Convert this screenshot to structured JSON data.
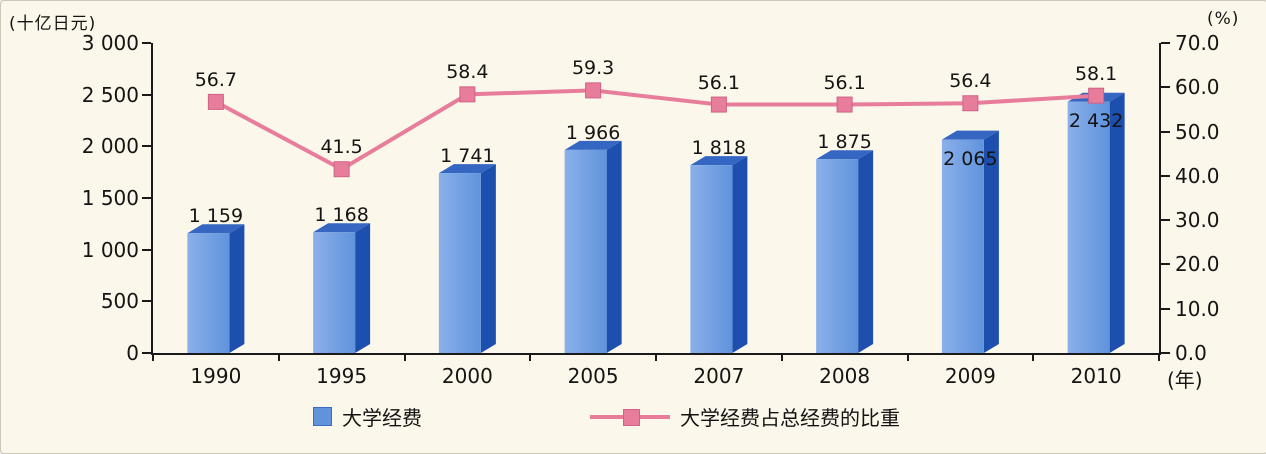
{
  "legend": [
    {
      "label": "大学经费",
      "type": "bar"
    },
    {
      "label": "大学经费占总经费的比重",
      "type": "line"
    }
  ],
  "colors": {
    "background": "#fbf7ea",
    "axis": "#1a1a1a",
    "text": "#141414",
    "bar_front": "#6093dc",
    "bar_front_light": "#8ab0ea",
    "bar_side": "#1d4fae",
    "bar_top": "#3566c2",
    "line": "#e87c9b",
    "marker_border": "#cf6287"
  },
  "chart_data": {
    "type": "bar",
    "subtype": "bar+line combo, 3D-style bars, secondary percent axis",
    "categories": [
      "1990",
      "1995",
      "2000",
      "2005",
      "2007",
      "2008",
      "2009",
      "2010"
    ],
    "series": [
      {
        "name": "大学经费",
        "type": "bar",
        "axis": "left",
        "unit": "十亿日元",
        "values": [
          1159,
          1168,
          1741,
          1966,
          1818,
          1875,
          2065,
          2432
        ],
        "labels": [
          "1 159",
          "1 168",
          "1 741",
          "1 966",
          "1 818",
          "1 875",
          "2 065",
          "2 432"
        ]
      },
      {
        "name": "大学经费占总经费的比重",
        "type": "line",
        "axis": "right",
        "unit": "%",
        "values": [
          56.7,
          41.5,
          58.4,
          59.3,
          56.1,
          56.1,
          56.4,
          58.1
        ],
        "labels": [
          "56.7",
          "41.5",
          "58.4",
          "59.3",
          "56.1",
          "56.1",
          "56.4",
          "58.1"
        ]
      }
    ],
    "left_axis": {
      "title": "(十亿日元)",
      "min": 0,
      "max": 3000,
      "step": 500,
      "tick_labels": [
        "0",
        "500",
        "1 000",
        "1 500",
        "2 000",
        "2 500",
        "3 000"
      ]
    },
    "right_axis": {
      "title": "(%)",
      "min": 0,
      "max": 70,
      "step": 10,
      "tick_labels": [
        "0.0",
        "10.0",
        "20.0",
        "30.0",
        "40.0",
        "50.0",
        "60.0",
        "70.0"
      ]
    },
    "x_axis": {
      "suffix_label": "(年)"
    },
    "grid": false,
    "legend_position": "bottom"
  }
}
